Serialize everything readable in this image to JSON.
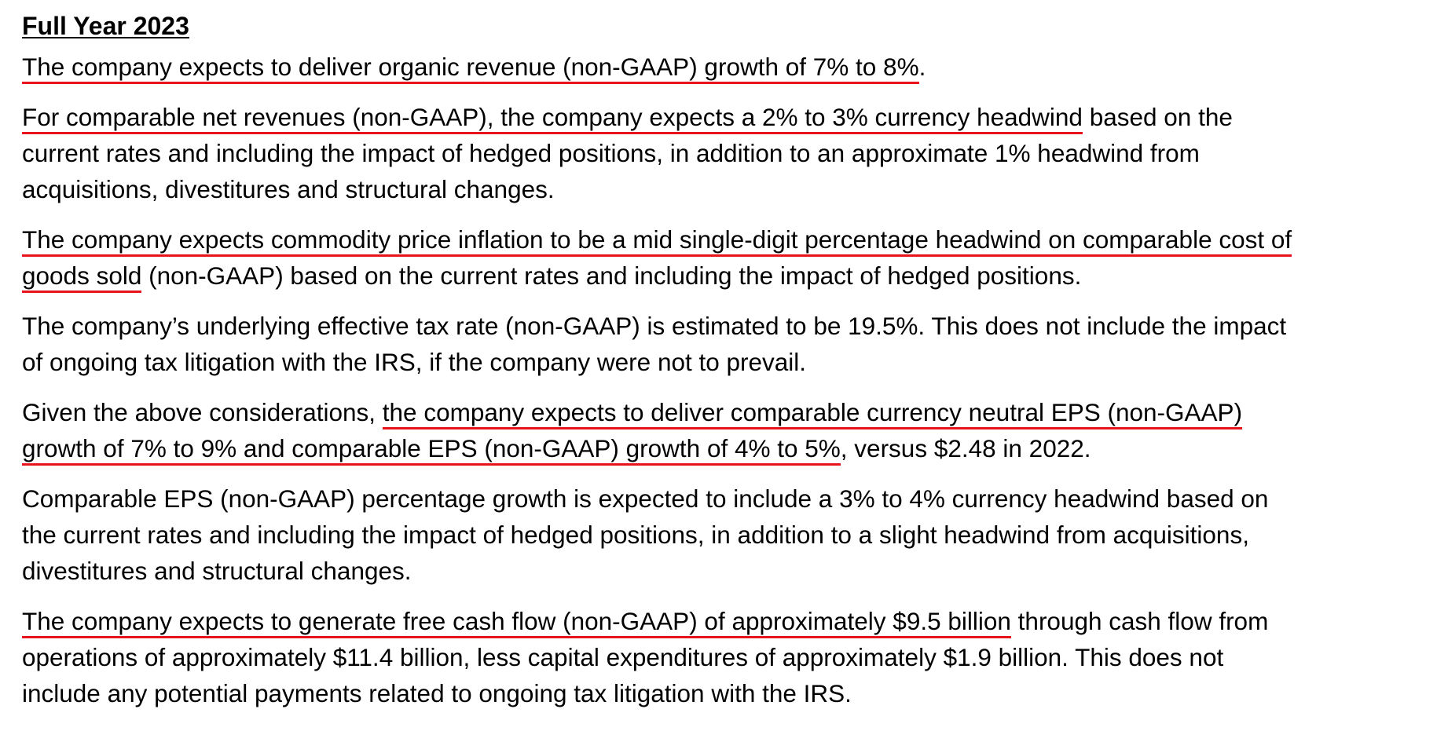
{
  "heading": "Full Year 2023",
  "p1": {
    "l1a": "The company expects to deliver organic revenue (non-GAAP) growth of 7% to 8%",
    "l1b": "."
  },
  "p2": {
    "l1a": "For comparable net revenues (non-GAAP), the company expects a 2% to 3% currency headwind",
    "l1b": " based on the",
    "l2": "current rates and including the impact of hedged positions, in addition to an approximate 1% headwind from",
    "l3": "acquisitions, divestitures and structural changes."
  },
  "p3": {
    "l1a": "The company expects commodity price inflation to be a mid single-digit percentage headwind on comparable cost of",
    "l2a": "goods sold",
    "l2b": " (non-GAAP) based on the current rates and including the impact of hedged positions."
  },
  "p4": {
    "l1": "The company’s underlying effective tax rate (non-GAAP) is estimated to be 19.5%. This does not include the impact",
    "l2": "of ongoing tax litigation with the IRS, if the company were not to prevail."
  },
  "p5": {
    "l1a": "Given the above considerations, ",
    "l1b": "the company expects to deliver comparable currency neutral EPS (non-GAAP)",
    "l2a": "growth of 7% to 9% and comparable EPS (non-GAAP) growth of 4% to 5%",
    "l2b": ", versus $2.48 in 2022."
  },
  "p6": {
    "l1": "Comparable EPS (non-GAAP) percentage growth is expected to include a 3% to 4% currency headwind based on",
    "l2": "the current rates and including the impact of hedged positions, in addition to a slight headwind from acquisitions,",
    "l3": "divestitures and structural changes."
  },
  "p7": {
    "l1a": "The company expects to generate free cash flow (non-GAAP) of approximately $9.5 billion",
    "l1b": " through cash flow from",
    "l2": "operations of approximately $11.4 billion, less capital expenditures of approximately $1.9 billion. This does not",
    "l3": "include any potential payments related to ongoing tax litigation with the IRS."
  },
  "colors": {
    "highlight_underline": "#e8141c",
    "text": "#000000",
    "background": "#ffffff"
  }
}
